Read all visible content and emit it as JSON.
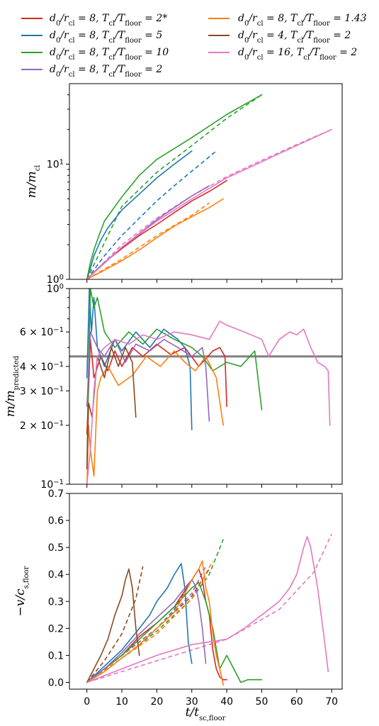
{
  "legend": {
    "entries": [
      {
        "key": "s1",
        "math": "d_0/r_cl = 8, T_cl/T_floor = 2*",
        "color": "#d62728"
      },
      {
        "key": "s5",
        "math": "d_0/r_cl = 8, T_cl/T_floor = 1.43",
        "color": "#ff7f0e"
      },
      {
        "key": "s2",
        "math": "d_0/r_cl = 8, T_cl/T_floor = 5",
        "color": "#1f77b4"
      },
      {
        "key": "s6",
        "math": "d_0/r_cl = 4, T_cl/T_floor = 2",
        "color": "#8c4a1e"
      },
      {
        "key": "s3",
        "math": "d_0/r_cl = 8, T_cl/T_floor = 10",
        "color": "#2ca02c"
      },
      {
        "key": "s7",
        "math": "d_0/r_cl = 16, T_cl/T_floor = 2",
        "color": "#e377c2"
      },
      {
        "key": "s4",
        "math": "d_0/r_cl = 8, T_cl/T_floor = 2",
        "color": "#9467bd"
      }
    ]
  },
  "axis_text": {
    "top_ylabel": "m/m_cl",
    "middle_ylabel": "m/m_predicted",
    "bottom_ylabel": "−v/c_s,floor",
    "xlabel": "t/t_sc,floor",
    "top_ticks": [
      "10^0",
      "10^1"
    ],
    "middle_ticks": [
      "10^0",
      "6 × 10^−1",
      "4 × 10^−1",
      "3 × 10^−1",
      "2 × 10^−1",
      "10^−1"
    ],
    "bottom_ticks": [
      "0.0",
      "0.1",
      "0.2",
      "0.3",
      "0.4",
      "0.5",
      "0.6",
      "0.7"
    ],
    "x_ticks": [
      "0",
      "10",
      "20",
      "30",
      "40",
      "50",
      "60",
      "70"
    ]
  },
  "chart_data": [
    {
      "type": "line",
      "panel": "top",
      "ylabel": "m/m_cl",
      "yscale": "log",
      "ylim": [
        1,
        50
      ],
      "xlim": [
        -5,
        73
      ],
      "series": [
        {
          "key": "s1",
          "color": "#d62728",
          "x": [
            0,
            2,
            5,
            10,
            15,
            20,
            25,
            30,
            35,
            40
          ],
          "y": [
            1,
            1.15,
            1.4,
            1.85,
            2.4,
            3.0,
            3.8,
            4.8,
            5.8,
            7.2
          ]
        },
        {
          "key": "s2",
          "color": "#1f77b4",
          "x": [
            0,
            1,
            2,
            4,
            6,
            10,
            15,
            20,
            25,
            30
          ],
          "y": [
            1,
            1.25,
            1.6,
            2.2,
            2.8,
            4.0,
            5.5,
            7.6,
            10.0,
            13.0
          ]
        },
        {
          "key": "s3",
          "color": "#2ca02c",
          "x": [
            0,
            1,
            2,
            3,
            5,
            10,
            15,
            20,
            30,
            40,
            50
          ],
          "y": [
            1,
            1.4,
            1.8,
            2.2,
            3.2,
            5.2,
            8.0,
            11.0,
            17.0,
            27.0,
            40.0
          ]
        },
        {
          "key": "s4",
          "color": "#9467bd",
          "x": [
            0,
            5,
            10,
            15,
            20,
            25,
            30,
            35
          ],
          "y": [
            1,
            1.4,
            1.9,
            2.5,
            3.3,
            4.2,
            5.3,
            6.5
          ]
        },
        {
          "key": "s5",
          "color": "#ff7f0e",
          "x": [
            0,
            5,
            10,
            15,
            20,
            25,
            30,
            35,
            39
          ],
          "y": [
            1,
            1.2,
            1.45,
            1.8,
            2.3,
            2.9,
            3.5,
            4.2,
            5.0
          ]
        },
        {
          "key": "s7",
          "color": "#e377c2",
          "x": [
            0,
            10,
            20,
            30,
            40,
            50,
            60,
            70
          ],
          "y": [
            1,
            1.9,
            3.2,
            5.0,
            7.6,
            10.5,
            14.5,
            20.0
          ]
        }
      ],
      "predicted_series": [
        {
          "key": "s2",
          "color": "#1f77b4",
          "x": [
            0,
            5,
            10,
            15,
            20,
            25,
            30,
            37
          ],
          "y": [
            1,
            1.6,
            2.4,
            3.4,
            4.8,
            6.5,
            8.7,
            13.0
          ]
        },
        {
          "key": "s3",
          "color": "#2ca02c",
          "x": [
            0,
            10,
            20,
            30,
            40,
            50
          ],
          "y": [
            1,
            4.3,
            8.5,
            14.5,
            25.0,
            40.0
          ]
        },
        {
          "key": "s5",
          "color": "#ff7f0e",
          "x": [
            0,
            10,
            20,
            30,
            35
          ],
          "y": [
            1,
            1.5,
            2.4,
            3.6,
            4.6
          ]
        },
        {
          "key": "s7",
          "color": "#e377c2",
          "x": [
            0,
            10,
            20,
            30,
            40,
            50,
            60,
            70
          ],
          "y": [
            1,
            2.0,
            3.4,
            5.3,
            7.8,
            10.8,
            14.8,
            20.0
          ]
        }
      ]
    },
    {
      "type": "line",
      "panel": "middle",
      "ylabel": "m/m_predicted",
      "yscale": "log",
      "ylim": [
        0.1,
        1.0
      ],
      "xlim": [
        -5,
        73
      ],
      "reference_line": {
        "y": 0.45,
        "color": "#808080"
      },
      "series": [
        {
          "key": "s1",
          "color": "#d62728",
          "x": [
            0,
            1,
            2,
            4,
            6,
            8,
            10,
            13,
            16,
            20,
            24,
            28,
            32,
            36,
            38,
            39.5,
            40
          ],
          "y": [
            0.18,
            0.55,
            0.35,
            0.45,
            0.38,
            0.48,
            0.4,
            0.5,
            0.45,
            0.52,
            0.46,
            0.5,
            0.4,
            0.48,
            0.5,
            0.45,
            0.25
          ]
        },
        {
          "key": "s2",
          "color": "#1f77b4",
          "x": [
            0,
            0.7,
            1.3,
            2,
            3,
            5,
            8,
            10,
            14,
            18,
            22,
            26,
            28,
            29.5,
            30
          ],
          "y": [
            0.35,
            1.0,
            0.6,
            0.9,
            0.5,
            0.4,
            0.55,
            0.48,
            0.6,
            0.5,
            0.62,
            0.55,
            0.5,
            0.4,
            0.19
          ]
        },
        {
          "key": "s3",
          "color": "#2ca02c",
          "x": [
            0,
            0.5,
            1,
            2,
            3,
            5,
            8,
            12,
            16,
            20,
            25,
            30,
            33,
            36,
            40,
            44,
            48,
            50
          ],
          "y": [
            0.12,
            0.4,
            1.0,
            0.8,
            0.9,
            0.6,
            0.5,
            0.6,
            0.52,
            0.62,
            0.55,
            0.5,
            0.45,
            0.38,
            0.42,
            0.4,
            0.48,
            0.24
          ]
        },
        {
          "key": "s4",
          "color": "#9467bd",
          "x": [
            0,
            1,
            3,
            5,
            8,
            11,
            14,
            18,
            22,
            26,
            30,
            33,
            34,
            35
          ],
          "y": [
            0.25,
            0.6,
            0.5,
            0.45,
            0.55,
            0.42,
            0.52,
            0.48,
            0.55,
            0.5,
            0.45,
            0.5,
            0.4,
            0.21
          ]
        },
        {
          "key": "s5",
          "color": "#ff7f0e",
          "x": [
            0,
            0.5,
            1,
            2,
            3,
            4,
            6,
            9,
            13,
            17,
            21,
            25,
            28,
            31,
            34,
            37,
            39
          ],
          "y": [
            0.1,
            0.2,
            0.15,
            0.11,
            0.3,
            0.35,
            0.4,
            0.32,
            0.36,
            0.45,
            0.4,
            0.48,
            0.42,
            0.38,
            0.45,
            0.35,
            0.2
          ]
        },
        {
          "key": "s6",
          "color": "#8c4a1e",
          "x": [
            0,
            0.5,
            1.5,
            3,
            5,
            7,
            9,
            11,
            13,
            14
          ],
          "y": [
            0.12,
            0.26,
            0.22,
            0.45,
            0.35,
            0.5,
            0.4,
            0.5,
            0.42,
            0.22
          ]
        },
        {
          "key": "s7",
          "color": "#e377c2",
          "x": [
            0,
            1,
            2,
            3,
            5,
            8,
            12,
            16,
            20,
            25,
            30,
            35,
            38,
            40,
            45,
            50,
            52,
            55,
            58,
            60,
            62,
            64,
            66,
            68,
            69,
            69.5
          ],
          "y": [
            0.1,
            0.15,
            0.3,
            0.45,
            0.5,
            0.55,
            0.52,
            0.58,
            0.55,
            0.6,
            0.58,
            0.55,
            0.68,
            0.65,
            0.6,
            0.55,
            0.45,
            0.55,
            0.6,
            0.58,
            0.62,
            0.5,
            0.42,
            0.4,
            0.38,
            0.2
          ]
        }
      ]
    },
    {
      "type": "line",
      "panel": "bottom",
      "ylabel": "−v/c_s,floor",
      "xlabel": "t/t_sc,floor",
      "ylim": [
        -0.025,
        0.7
      ],
      "xlim": [
        -5,
        73
      ],
      "series": [
        {
          "key": "s1",
          "color": "#d62728",
          "x": [
            0,
            5,
            10,
            15,
            20,
            25,
            28,
            30,
            32,
            33,
            34,
            35,
            36,
            37,
            38,
            39,
            40
          ],
          "y": [
            0,
            0.05,
            0.1,
            0.17,
            0.22,
            0.28,
            0.34,
            0.38,
            0.42,
            0.38,
            0.3,
            0.25,
            0.12,
            0.05,
            0.02,
            0.01,
            0.01
          ]
        },
        {
          "key": "s2",
          "color": "#1f77b4",
          "x": [
            0,
            5,
            10,
            15,
            18,
            20,
            23,
            25,
            27,
            28,
            29,
            30
          ],
          "y": [
            0,
            0.06,
            0.12,
            0.2,
            0.25,
            0.3,
            0.35,
            0.4,
            0.44,
            0.35,
            0.15,
            0.07
          ]
        },
        {
          "key": "s3",
          "color": "#2ca02c",
          "x": [
            0,
            5,
            10,
            15,
            20,
            25,
            30,
            32,
            34,
            36,
            38,
            40,
            42,
            44,
            46,
            48,
            50
          ],
          "y": [
            0,
            0.05,
            0.1,
            0.16,
            0.22,
            0.28,
            0.35,
            0.37,
            0.3,
            0.2,
            0.05,
            0.1,
            0.05,
            0.0,
            0.01,
            0.01,
            0.01
          ]
        },
        {
          "key": "s4",
          "color": "#9467bd",
          "x": [
            0,
            5,
            10,
            15,
            20,
            25,
            28,
            30,
            31,
            32,
            33,
            34
          ],
          "y": [
            0,
            0.05,
            0.11,
            0.18,
            0.24,
            0.3,
            0.35,
            0.38,
            0.36,
            0.3,
            0.2,
            0.07
          ]
        },
        {
          "key": "s5",
          "color": "#ff7f0e",
          "x": [
            0,
            5,
            10,
            15,
            20,
            25,
            28,
            30,
            32,
            33,
            34,
            35,
            36,
            37,
            38,
            39
          ],
          "y": [
            0,
            0.04,
            0.09,
            0.14,
            0.2,
            0.26,
            0.33,
            0.38,
            0.42,
            0.45,
            0.35,
            0.3,
            0.18,
            0.1,
            0.05,
            -0.01
          ]
        },
        {
          "key": "s6",
          "color": "#8c4a1e",
          "x": [
            0,
            2,
            4,
            6,
            8,
            10,
            11,
            12,
            13,
            14,
            15
          ],
          "y": [
            0,
            0.05,
            0.1,
            0.16,
            0.25,
            0.32,
            0.38,
            0.42,
            0.35,
            0.2,
            0.1
          ]
        },
        {
          "key": "s7",
          "color": "#e377c2",
          "x": [
            0,
            10,
            20,
            30,
            40,
            45,
            50,
            55,
            58,
            60,
            62,
            63,
            64,
            66,
            68,
            69
          ],
          "y": [
            0,
            0.05,
            0.1,
            0.14,
            0.16,
            0.2,
            0.25,
            0.3,
            0.35,
            0.4,
            0.5,
            0.54,
            0.5,
            0.35,
            0.15,
            0.04
          ]
        }
      ],
      "predicted_series": [
        {
          "key": "s1",
          "color": "#d62728",
          "x": [
            0,
            10,
            20,
            30,
            35
          ],
          "y": [
            0,
            0.1,
            0.2,
            0.32,
            0.42
          ]
        },
        {
          "key": "s2",
          "color": "#1f77b4",
          "x": [
            0,
            10,
            20,
            25,
            30
          ],
          "y": [
            0,
            0.1,
            0.2,
            0.27,
            0.38
          ]
        },
        {
          "key": "s3",
          "color": "#2ca02c",
          "x": [
            0,
            10,
            20,
            30,
            35,
            39
          ],
          "y": [
            0,
            0.09,
            0.19,
            0.31,
            0.4,
            0.53
          ]
        },
        {
          "key": "s4",
          "color": "#9467bd",
          "x": [
            0,
            10,
            20,
            30,
            34
          ],
          "y": [
            0,
            0.1,
            0.2,
            0.33,
            0.43
          ]
        },
        {
          "key": "s5",
          "color": "#ff7f0e",
          "x": [
            0,
            10,
            20,
            30,
            36
          ],
          "y": [
            0,
            0.09,
            0.18,
            0.31,
            0.45
          ]
        },
        {
          "key": "s6",
          "color": "#8c4a1e",
          "x": [
            0,
            5,
            10,
            14,
            16
          ],
          "y": [
            0,
            0.08,
            0.18,
            0.31,
            0.43
          ]
        },
        {
          "key": "s7",
          "color": "#e377c2",
          "x": [
            0,
            20,
            40,
            55,
            65,
            70
          ],
          "y": [
            0,
            0.08,
            0.16,
            0.27,
            0.41,
            0.55
          ]
        }
      ]
    }
  ]
}
